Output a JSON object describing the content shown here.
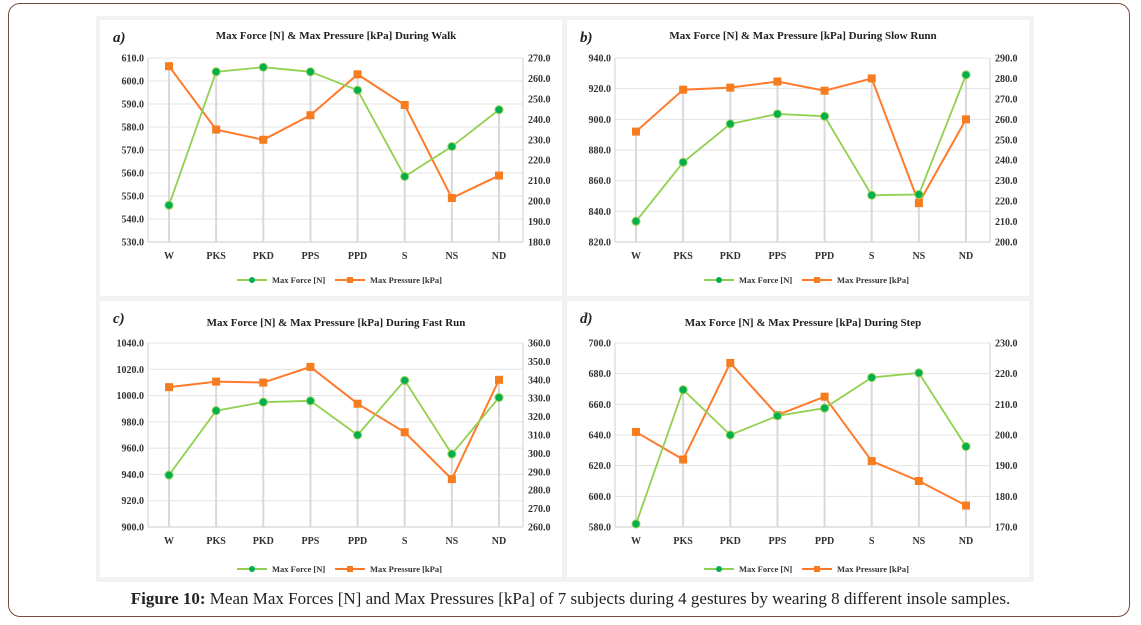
{
  "figure": {
    "caption_label": "Figure 10:",
    "caption_text": " Mean Max Forces [N] and Max Pressures [kPa] of 7 subjects during 4 gestures by wearing 8 different insole samples."
  },
  "colors": {
    "force_line": "#92d050",
    "force_marker": "#00b050",
    "pressure_line": "#ff7a2a",
    "pressure_marker": "#f57c1f"
  },
  "chart_data": [
    {
      "type": "line",
      "panel_label": "a)",
      "title": "Max Force [N]  & Max Pressure [kPa] During Walk",
      "categories": [
        "W",
        "PKS",
        "PKD",
        "PPS",
        "PPD",
        "S",
        "NS",
        "ND"
      ],
      "ylim": [
        530,
        610
      ],
      "ystep": 10,
      "y2lim": [
        180,
        270
      ],
      "y2step": 10,
      "grid": true,
      "legend": "bottom",
      "series": [
        {
          "name": "Max Force [N]",
          "axis": "left",
          "marker": "circle",
          "values": [
            546,
            604,
            606,
            604,
            596,
            558.5,
            571.5,
            587.5
          ]
        },
        {
          "name": "Max Pressure [kPa]",
          "axis": "right",
          "marker": "square",
          "values": [
            266,
            235,
            230,
            242,
            262,
            247,
            201.5,
            212.5
          ]
        }
      ]
    },
    {
      "type": "line",
      "panel_label": "b)",
      "title": "Max Force [N]  & Max Pressure [kPa] During Slow Runn",
      "categories": [
        "W",
        "PKS",
        "PKD",
        "PPS",
        "PPD",
        "S",
        "NS",
        "ND"
      ],
      "ylim": [
        820,
        940
      ],
      "ystep": 20,
      "y2lim": [
        200,
        290
      ],
      "y2step": 10,
      "grid": true,
      "legend": "bottom",
      "series": [
        {
          "name": "Max Force [N]",
          "axis": "left",
          "marker": "circle",
          "values": [
            833.5,
            872,
            897,
            903.5,
            902,
            850.5,
            851,
            929
          ]
        },
        {
          "name": "Max Pressure [kPa]",
          "axis": "right",
          "marker": "square",
          "values": [
            254,
            274.5,
            275.5,
            278.5,
            274,
            280,
            219,
            260
          ]
        }
      ]
    },
    {
      "type": "line",
      "panel_label": "c)",
      "title": "Max Force [N]  & Max Pressure [kPa] During Fast Run",
      "categories": [
        "W",
        "PKS",
        "PKD",
        "PPS",
        "PPD",
        "S",
        "NS",
        "ND"
      ],
      "ylim": [
        900,
        1040
      ],
      "ystep": 20,
      "y2lim": [
        260,
        360
      ],
      "y2step": 10,
      "grid": true,
      "legend": "bottom",
      "series": [
        {
          "name": "Max Force [N]",
          "axis": "left",
          "marker": "circle",
          "values": [
            939.5,
            988.5,
            995,
            996,
            970,
            1011.5,
            955.5,
            998.5
          ]
        },
        {
          "name": "Max Pressure [kPa]",
          "axis": "right",
          "marker": "square",
          "values": [
            336,
            339,
            338.5,
            347,
            327,
            311.5,
            286,
            340
          ]
        }
      ]
    },
    {
      "type": "line",
      "panel_label": "d)",
      "title": "Max Force [N]  & Max Pressure [kPa] During Step",
      "categories": [
        "W",
        "PKS",
        "PKD",
        "PPS",
        "PPD",
        "S",
        "NS",
        "ND"
      ],
      "ylim": [
        580,
        700
      ],
      "ystep": 20,
      "y2lim": [
        170,
        230
      ],
      "y2step": 10,
      "grid": true,
      "legend": "bottom",
      "series": [
        {
          "name": "Max Force [N]",
          "axis": "left",
          "marker": "circle",
          "values": [
            582,
            669.5,
            640,
            652.5,
            657.5,
            677.5,
            680.5,
            632.5
          ]
        },
        {
          "name": "Max Pressure [kPa]",
          "axis": "right",
          "marker": "square",
          "values": [
            201,
            192,
            223.5,
            206.5,
            212.5,
            191.5,
            185,
            177
          ]
        }
      ]
    }
  ]
}
